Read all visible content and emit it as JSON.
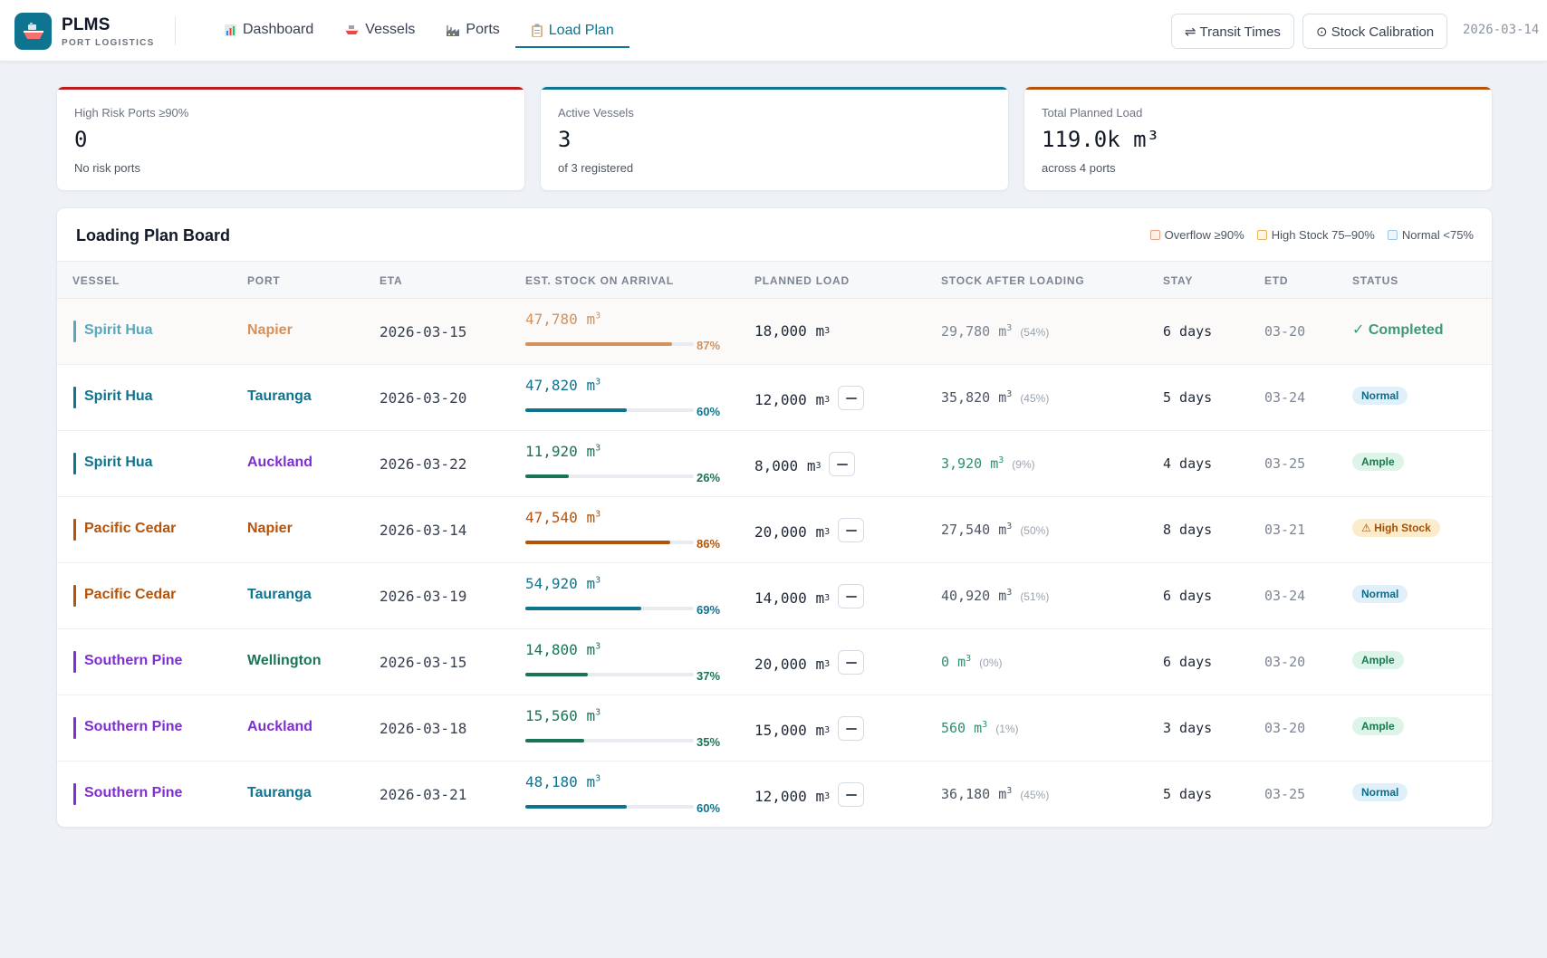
{
  "app": {
    "name": "PLMS",
    "subtitle": "PORT LOGISTICS",
    "date": "2026-03-14"
  },
  "nav": [
    {
      "label": "Dashboard",
      "icon": "bar-chart-icon",
      "active": false
    },
    {
      "label": "Vessels",
      "icon": "ship-icon",
      "active": false
    },
    {
      "label": "Ports",
      "icon": "factory-icon",
      "active": false
    },
    {
      "label": "Load Plan",
      "icon": "clipboard-icon",
      "active": true
    }
  ],
  "header_buttons": {
    "transit": "⇌ Transit Times",
    "calibration": "⊙ Stock Calibration"
  },
  "cards": [
    {
      "label": "High Risk Ports ≥90%",
      "value": "0",
      "sub": "No risk ports",
      "accent": "#b91c1c"
    },
    {
      "label": "Active Vessels",
      "value": "3",
      "sub": "of 3 registered",
      "accent": "#0e7490"
    },
    {
      "label": "Total Planned Load",
      "value": "119.0k m³",
      "sub": "across 4 ports",
      "accent": "#b45309"
    }
  ],
  "board": {
    "title": "Loading Plan Board",
    "legend": [
      {
        "label": "Overflow ≥90%",
        "color": "#e8a080"
      },
      {
        "label": "High Stock 75–90%",
        "color": "#e4b458"
      },
      {
        "label": "Normal <75%",
        "color": "#9cc6e6"
      }
    ],
    "columns": [
      "VESSEL",
      "PORT",
      "ETA",
      "EST. STOCK ON ARRIVAL",
      "PLANNED LOAD",
      "STOCK AFTER LOADING",
      "STAY",
      "ETD",
      "STATUS"
    ],
    "rows": [
      {
        "vessel": "Spirit Hua",
        "vessel_color": "#5aa7bd",
        "port": "Napier",
        "port_color": "#d3915d",
        "eta": "2026-03-15",
        "stock": "47,780",
        "unit": "m",
        "pct": "87%",
        "fill": 0.87,
        "stock_color": "#d3915d",
        "bar_color": "#d3915d",
        "planned": "18,000",
        "after": "29,780",
        "after_pct": "(54%)",
        "after_color": "#7b8492",
        "stay": "6 days",
        "etd": "03-20",
        "status": "✓ Completed",
        "status_type": "done",
        "edit": false
      },
      {
        "vessel": "Spirit Hua",
        "vessel_color": "#0e7490",
        "port": "Tauranga",
        "port_color": "#0e7490",
        "eta": "2026-03-20",
        "stock": "47,820",
        "unit": "m",
        "pct": "60%",
        "fill": 0.6,
        "stock_color": "#0e7490",
        "bar_color": "#0e7490",
        "planned": "12,000",
        "after": "35,820",
        "after_pct": "(45%)",
        "after_color": "#4b5563",
        "stay": "5 days",
        "etd": "03-24",
        "status": "Normal",
        "status_type": "normal",
        "edit": true
      },
      {
        "vessel": "Spirit Hua",
        "vessel_color": "#0e7490",
        "port": "Auckland",
        "port_color": "#7e2fd0",
        "eta": "2026-03-22",
        "stock": "11,920",
        "unit": "m",
        "pct": "26%",
        "fill": 0.26,
        "stock_color": "#187653",
        "bar_color": "#187653",
        "planned": "8,000",
        "after": "3,920",
        "after_pct": "(9%)",
        "after_color": "#2f8f6a",
        "stay": "4 days",
        "etd": "03-25",
        "status": "Ample",
        "status_type": "ample",
        "edit": true
      },
      {
        "vessel": "Pacific Cedar",
        "vessel_color": "#b45309",
        "port": "Napier",
        "port_color": "#b45309",
        "eta": "2026-03-14",
        "stock": "47,540",
        "unit": "m",
        "pct": "86%",
        "fill": 0.86,
        "stock_color": "#b45309",
        "bar_color": "#b45309",
        "planned": "20,000",
        "after": "27,540",
        "after_pct": "(50%)",
        "after_color": "#4b5563",
        "stay": "8 days",
        "etd": "03-21",
        "status": "⚠ High Stock",
        "status_type": "high",
        "edit": true
      },
      {
        "vessel": "Pacific Cedar",
        "vessel_color": "#b45309",
        "port": "Tauranga",
        "port_color": "#0e7490",
        "eta": "2026-03-19",
        "stock": "54,920",
        "unit": "m",
        "pct": "69%",
        "fill": 0.69,
        "stock_color": "#0e7490",
        "bar_color": "#0e7490",
        "planned": "14,000",
        "after": "40,920",
        "after_pct": "(51%)",
        "after_color": "#4b5563",
        "stay": "6 days",
        "etd": "03-24",
        "status": "Normal",
        "status_type": "normal",
        "edit": true
      },
      {
        "vessel": "Southern Pine",
        "vessel_color": "#7e2fd0",
        "port": "Wellington",
        "port_color": "#187653",
        "eta": "2026-03-15",
        "stock": "14,800",
        "unit": "m",
        "pct": "37%",
        "fill": 0.37,
        "stock_color": "#187653",
        "bar_color": "#187653",
        "planned": "20,000",
        "after": "0",
        "after_pct": "(0%)",
        "after_color": "#2f8f6a",
        "stay": "6 days",
        "etd": "03-20",
        "status": "Ample",
        "status_type": "ample",
        "edit": true
      },
      {
        "vessel": "Southern Pine",
        "vessel_color": "#7e2fd0",
        "port": "Auckland",
        "port_color": "#7e2fd0",
        "eta": "2026-03-18",
        "stock": "15,560",
        "unit": "m",
        "pct": "35%",
        "fill": 0.35,
        "stock_color": "#187653",
        "bar_color": "#187653",
        "planned": "15,000",
        "after": "560",
        "after_pct": "(1%)",
        "after_color": "#2f8f6a",
        "stay": "3 days",
        "etd": "03-20",
        "status": "Ample",
        "status_type": "ample",
        "edit": true
      },
      {
        "vessel": "Southern Pine",
        "vessel_color": "#7e2fd0",
        "port": "Tauranga",
        "port_color": "#0e7490",
        "eta": "2026-03-21",
        "stock": "48,180",
        "unit": "m",
        "pct": "60%",
        "fill": 0.6,
        "stock_color": "#0e7490",
        "bar_color": "#0e7490",
        "planned": "12,000",
        "after": "36,180",
        "after_pct": "(45%)",
        "after_color": "#4b5563",
        "stay": "5 days",
        "etd": "03-25",
        "status": "Normal",
        "status_type": "normal",
        "edit": true
      }
    ]
  }
}
